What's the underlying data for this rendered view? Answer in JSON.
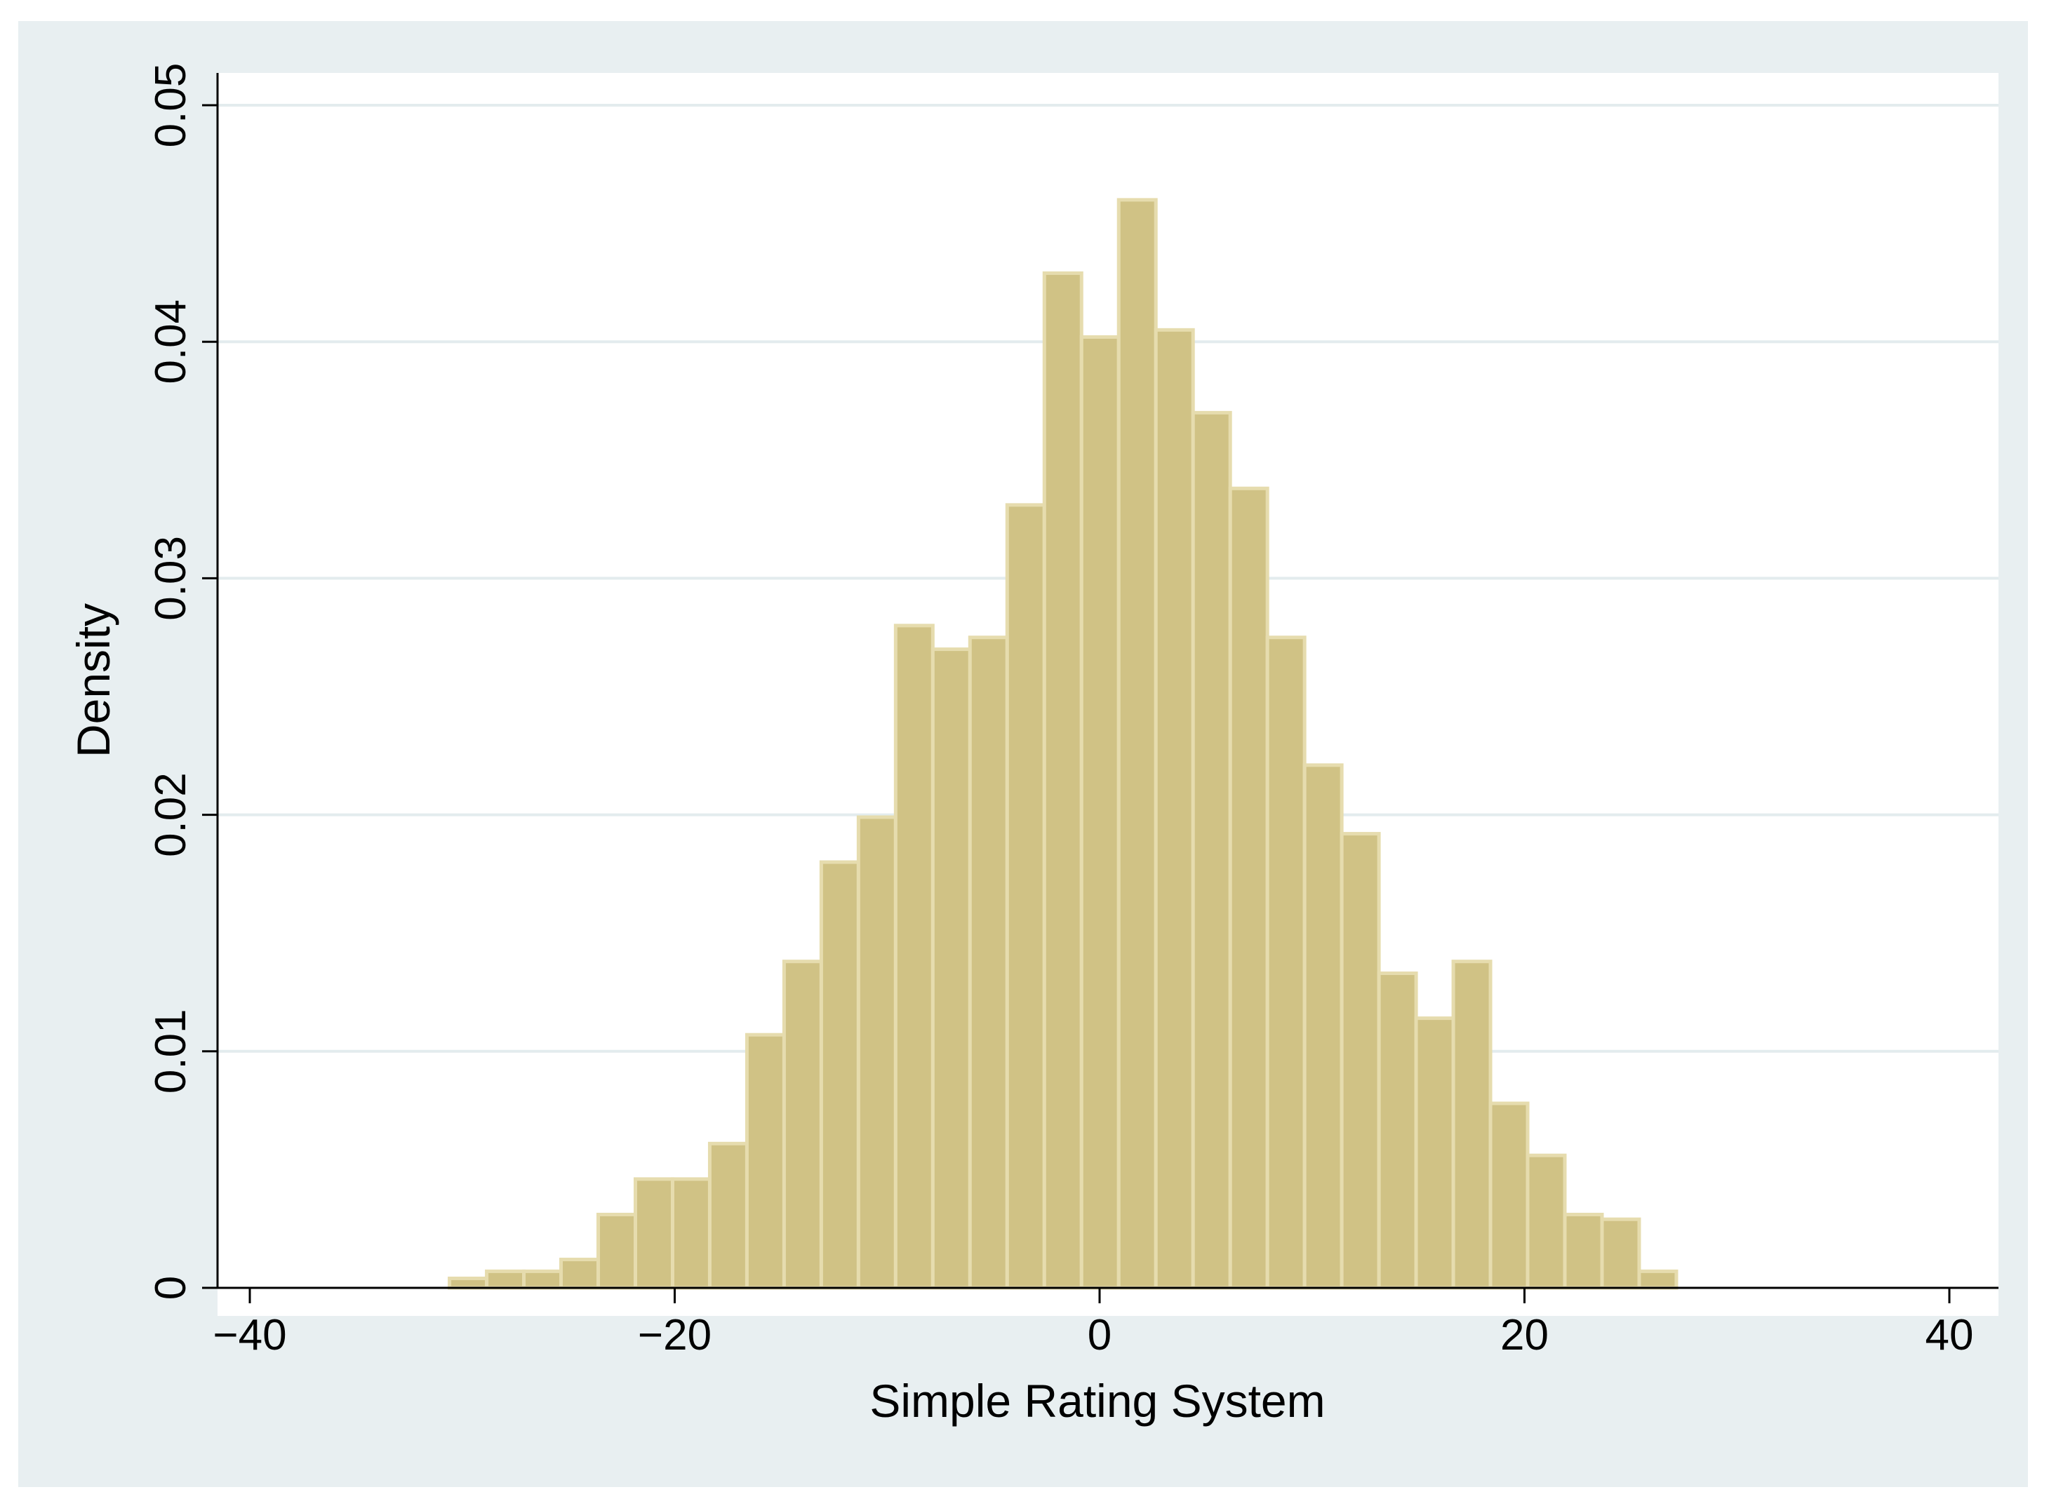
{
  "chart_data": {
    "type": "bar",
    "subtype": "histogram",
    "title": "",
    "xlabel": "Simple Rating System",
    "ylabel": "Density",
    "xlim": [
      -40,
      40
    ],
    "ylim": [
      0,
      0.05
    ],
    "x_ticks": [
      {
        "value": -40,
        "label": "−40"
      },
      {
        "value": -20,
        "label": "−20"
      },
      {
        "value": 0,
        "label": "0"
      },
      {
        "value": 20,
        "label": "20"
      },
      {
        "value": 40,
        "label": "40"
      }
    ],
    "y_ticks": [
      {
        "value": 0,
        "label": "0"
      },
      {
        "value": 0.01,
        "label": "0.01"
      },
      {
        "value": 0.02,
        "label": "0.02"
      },
      {
        "value": 0.03,
        "label": "0.03"
      },
      {
        "value": 0.04,
        "label": "0.04"
      },
      {
        "value": 0.05,
        "label": "0.05"
      }
    ],
    "grid": "horizontal",
    "bin_width": 1.75,
    "bins": [
      {
        "x0": -30.6,
        "x1": -28.85,
        "density": 0.0004
      },
      {
        "x0": -28.85,
        "x1": -27.1,
        "density": 0.0007
      },
      {
        "x0": -27.1,
        "x1": -25.35,
        "density": 0.0007
      },
      {
        "x0": -25.35,
        "x1": -23.6,
        "density": 0.0012
      },
      {
        "x0": -23.6,
        "x1": -21.85,
        "density": 0.0031
      },
      {
        "x0": -21.85,
        "x1": -20.1,
        "density": 0.0046
      },
      {
        "x0": -20.1,
        "x1": -18.35,
        "density": 0.0046
      },
      {
        "x0": -18.35,
        "x1": -16.6,
        "density": 0.0061
      },
      {
        "x0": -16.6,
        "x1": -14.85,
        "density": 0.0107
      },
      {
        "x0": -14.85,
        "x1": -13.1,
        "density": 0.0138
      },
      {
        "x0": -13.1,
        "x1": -11.35,
        "density": 0.018
      },
      {
        "x0": -11.35,
        "x1": -9.6,
        "density": 0.0199
      },
      {
        "x0": -9.6,
        "x1": -7.85,
        "density": 0.028
      },
      {
        "x0": -7.85,
        "x1": -6.1,
        "density": 0.027
      },
      {
        "x0": -6.1,
        "x1": -4.35,
        "density": 0.0275
      },
      {
        "x0": -4.35,
        "x1": -2.6,
        "density": 0.0331
      },
      {
        "x0": -2.6,
        "x1": -0.85,
        "density": 0.0429
      },
      {
        "x0": -0.85,
        "x1": 0.9,
        "density": 0.0402
      },
      {
        "x0": 0.9,
        "x1": 2.65,
        "density": 0.046
      },
      {
        "x0": 2.65,
        "x1": 4.4,
        "density": 0.0405
      },
      {
        "x0": 4.4,
        "x1": 6.15,
        "density": 0.037
      },
      {
        "x0": 6.15,
        "x1": 7.9,
        "density": 0.0338
      },
      {
        "x0": 7.9,
        "x1": 9.65,
        "density": 0.0275
      },
      {
        "x0": 9.65,
        "x1": 11.4,
        "density": 0.0221
      },
      {
        "x0": 11.4,
        "x1": 13.15,
        "density": 0.0192
      },
      {
        "x0": 13.15,
        "x1": 14.9,
        "density": 0.0133
      },
      {
        "x0": 14.9,
        "x1": 16.65,
        "density": 0.0114
      },
      {
        "x0": 16.65,
        "x1": 18.4,
        "density": 0.0138
      },
      {
        "x0": 18.4,
        "x1": 20.15,
        "density": 0.0078
      },
      {
        "x0": 20.15,
        "x1": 21.9,
        "density": 0.0056
      },
      {
        "x0": 21.9,
        "x1": 23.65,
        "density": 0.0031
      },
      {
        "x0": 23.65,
        "x1": 25.4,
        "density": 0.0029
      },
      {
        "x0": 25.4,
        "x1": 27.15,
        "density": 0.0007
      }
    ],
    "colors": {
      "bar_fill": "#d0c285",
      "bar_stroke": "#e6dcae",
      "frame_background": "#e8eff1",
      "plot_background": "#ffffff",
      "gridline": "#e3ecee",
      "axis": "#000000"
    }
  }
}
